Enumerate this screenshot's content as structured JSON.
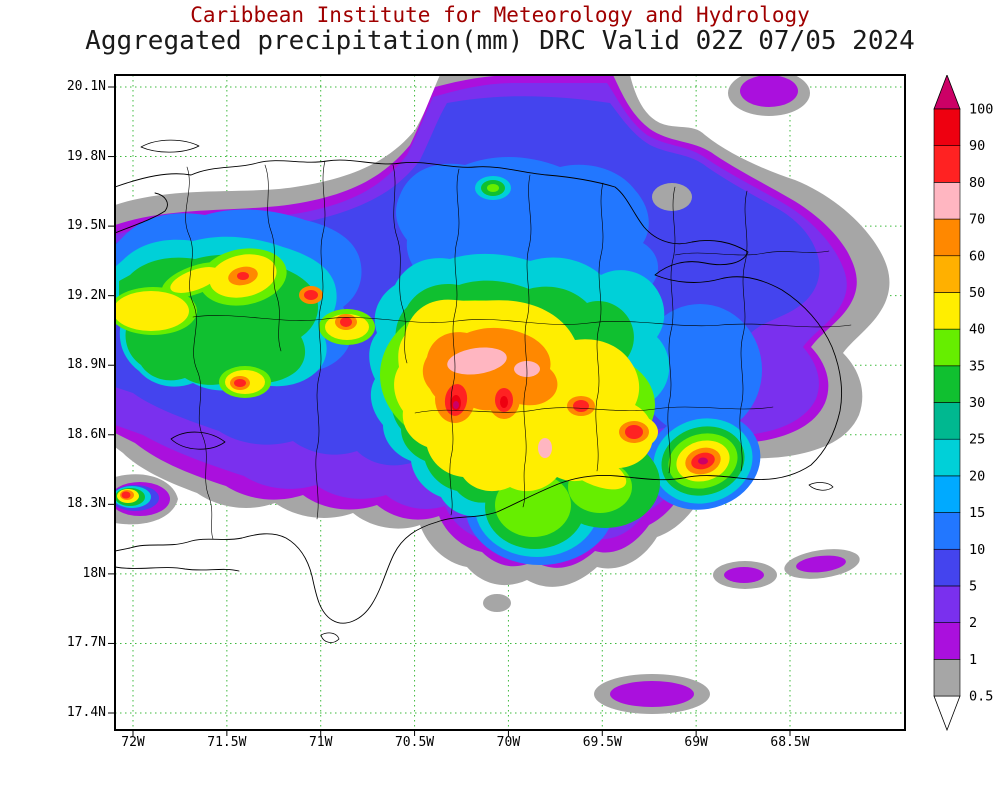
{
  "title": {
    "line1": "Caribbean Institute for Meteorology and Hydrology",
    "line2": "Aggregated precipitation(mm) DRC Valid 02Z 07/05 2024"
  },
  "map": {
    "lat_ticks": [
      "20.1N",
      "19.8N",
      "19.5N",
      "19.2N",
      "18.9N",
      "18.6N",
      "18.3N",
      "18N",
      "17.7N",
      "17.4N"
    ],
    "lon_ticks": [
      "72W",
      "71.5W",
      "71W",
      "70.5W",
      "70W",
      "69.5W",
      "69W",
      "68.5W"
    ]
  },
  "legend": {
    "labels_top_to_bottom": [
      "100",
      "90",
      "80",
      "70",
      "60",
      "50",
      "40",
      "35",
      "30",
      "25",
      "20",
      "15",
      "10",
      "5",
      "2",
      "1",
      "0.5"
    ],
    "segments_bottom_to_top": [
      {
        "range": "0.5-1",
        "color": "#a6a6a6"
      },
      {
        "range": "1-2",
        "color": "#aa10dd"
      },
      {
        "range": "2-5",
        "color": "#7a30ee"
      },
      {
        "range": "5-10",
        "color": "#4444ee"
      },
      {
        "range": "10-15",
        "color": "#2277ff"
      },
      {
        "range": "15-20",
        "color": "#00aaff"
      },
      {
        "range": "20-25",
        "color": "#00d0d8"
      },
      {
        "range": "25-30",
        "color": "#00b890"
      },
      {
        "range": "30-35",
        "color": "#10c030"
      },
      {
        "range": "35-40",
        "color": "#66ee00"
      },
      {
        "range": "40-50",
        "color": "#ffee00"
      },
      {
        "range": "50-60",
        "color": "#ffb000"
      },
      {
        "range": "60-70",
        "color": "#ff8800"
      },
      {
        "range": "70-80",
        "color": "#ffb6c1"
      },
      {
        "range": "80-90",
        "color": "#ff2222"
      },
      {
        "range": "90-100",
        "color": "#ee0010"
      }
    ],
    "arrow_top_color": "#cc0066",
    "arrow_bottom_color": "#ffffff"
  },
  "colors": {
    "grid": "#3dba3d",
    "coast": "#000000",
    "background": "#ffffff",
    "title_primary": "#a00000",
    "title_secondary": "#1a1a1a"
  },
  "chart_data": {
    "type": "heatmap",
    "title": "Aggregated precipitation(mm) DRC Valid 02Z 07/05 2024",
    "units": "mm",
    "lat_range": [
      "17.4N",
      "20.1N"
    ],
    "lon_range": [
      "72W",
      "68.5W"
    ],
    "levels": [
      0.5,
      1,
      2,
      5,
      10,
      15,
      20,
      25,
      30,
      35,
      40,
      50,
      60,
      70,
      80,
      90,
      100
    ],
    "legend_position": "right"
  }
}
